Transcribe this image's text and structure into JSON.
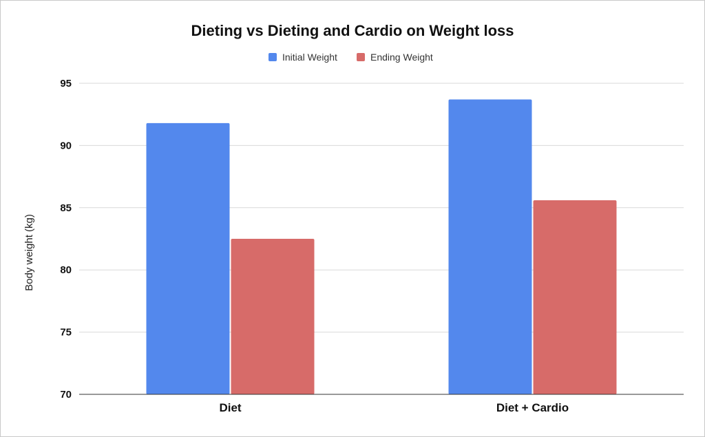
{
  "chart_data": {
    "type": "bar",
    "title": "Dieting vs Dieting and Cardio on Weight loss",
    "xlabel": "",
    "ylabel": "Body weight (kg)",
    "categories": [
      "Diet",
      "Diet + Cardio"
    ],
    "series": [
      {
        "name": "Initial Weight",
        "color": "#5388ed",
        "values": [
          91.8,
          93.7
        ]
      },
      {
        "name": "Ending Weight",
        "color": "#d76b69",
        "values": [
          82.5,
          85.6
        ]
      }
    ],
    "ylim": [
      70,
      95
    ],
    "yticks": [
      70,
      75,
      80,
      85,
      90,
      95
    ],
    "grid": true,
    "legend_position": "top"
  }
}
